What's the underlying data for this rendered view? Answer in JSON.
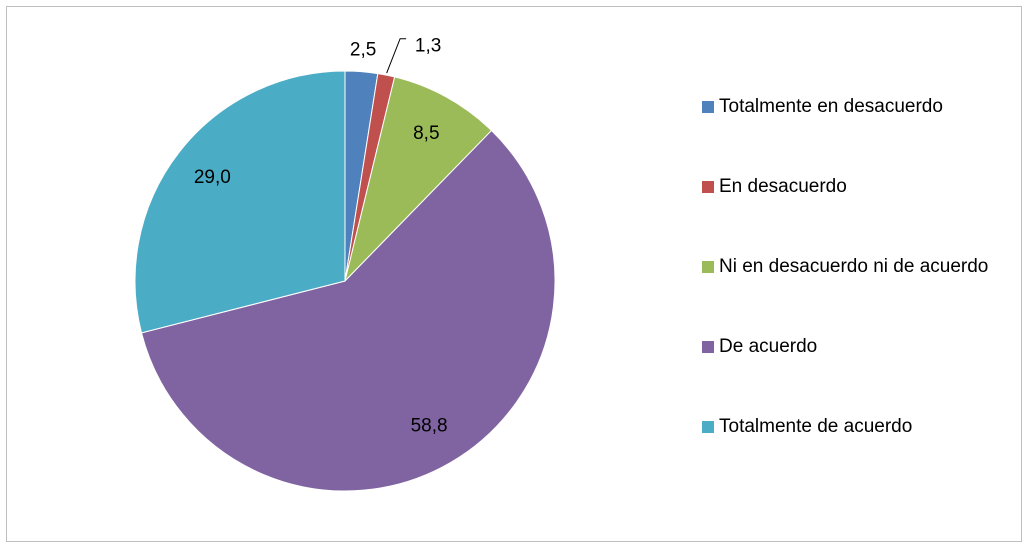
{
  "chart_data": {
    "type": "pie",
    "categories": [
      "Totalmente en desacuerdo",
      "En desacuerdo",
      "Ni en desacuerdo ni de acuerdo",
      "De acuerdo",
      "Totalmente de acuerdo"
    ],
    "values": [
      2.5,
      1.3,
      8.5,
      58.8,
      29.0
    ],
    "value_labels": [
      "2,5",
      "1,3",
      "8,5",
      "58,8",
      "29,0"
    ],
    "colors": [
      "#4f81bd",
      "#c0504d",
      "#9bbb59",
      "#8064a2",
      "#4bacc6"
    ],
    "legend": "right"
  }
}
